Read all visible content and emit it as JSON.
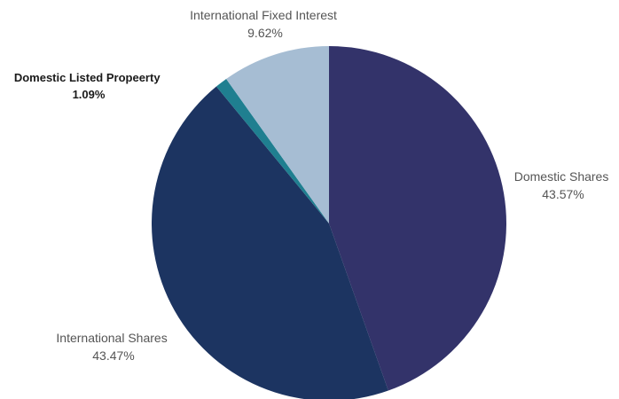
{
  "chart_data": {
    "type": "pie",
    "title": "",
    "start_angle_deg": 0,
    "direction": "clockwise",
    "slices": [
      {
        "label": "Domestic Shares",
        "value_label": "43.57%",
        "value": 43.57,
        "color": "#33336a",
        "emphasis": false
      },
      {
        "label": "International Shares",
        "value_label": "43.47%",
        "value": 43.47,
        "color": "#1c3461",
        "emphasis": false
      },
      {
        "label": "Domestic Listed Propeerty",
        "value_label": "1.09%",
        "value": 1.09,
        "color": "#1f7f90",
        "emphasis": true
      },
      {
        "label": "International Fixed Interest",
        "value_label": "9.62%",
        "value": 9.62,
        "color": "#a6bdd3",
        "emphasis": false
      }
    ]
  }
}
